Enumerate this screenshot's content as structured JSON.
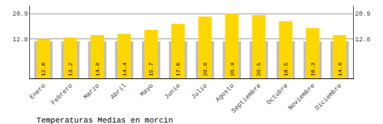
{
  "chart_data": {
    "type": "bar",
    "title": "Temperaturas Medias en morcin",
    "categories": [
      "Enero",
      "Febrero",
      "Marzo",
      "Abril",
      "Mayo",
      "Junio",
      "Julio",
      "Agosto",
      "Septiembre",
      "Octubre",
      "Noviembre",
      "Diciembre"
    ],
    "series": [
      {
        "color": "#BEBEBE",
        "values": [
          12.0,
          12.0,
          12.0,
          12.0,
          12.0,
          12.0,
          12.0,
          12.0,
          12.0,
          12.0,
          12.0,
          12.0
        ]
      },
      {
        "color": "#FFD700",
        "values": [
          12.8,
          13.2,
          14.0,
          14.4,
          15.7,
          17.6,
          20.0,
          20.9,
          20.5,
          18.5,
          16.3,
          14.0
        ],
        "value_labels": [
          "12.8",
          "13.2",
          "14.0",
          "14.4",
          "15.7",
          "17.6",
          "20.0",
          "20.9",
          "20.5",
          "18.5",
          "16.3",
          "14.0"
        ],
        "data_labels": true
      }
    ],
    "ylim": [
      0,
      23.5
    ],
    "yticks": [
      12.8,
      20.9
    ],
    "y2lim": [
      0,
      23.5
    ],
    "y2ticks": [
      12.8,
      20.9
    ],
    "grid": true
  }
}
